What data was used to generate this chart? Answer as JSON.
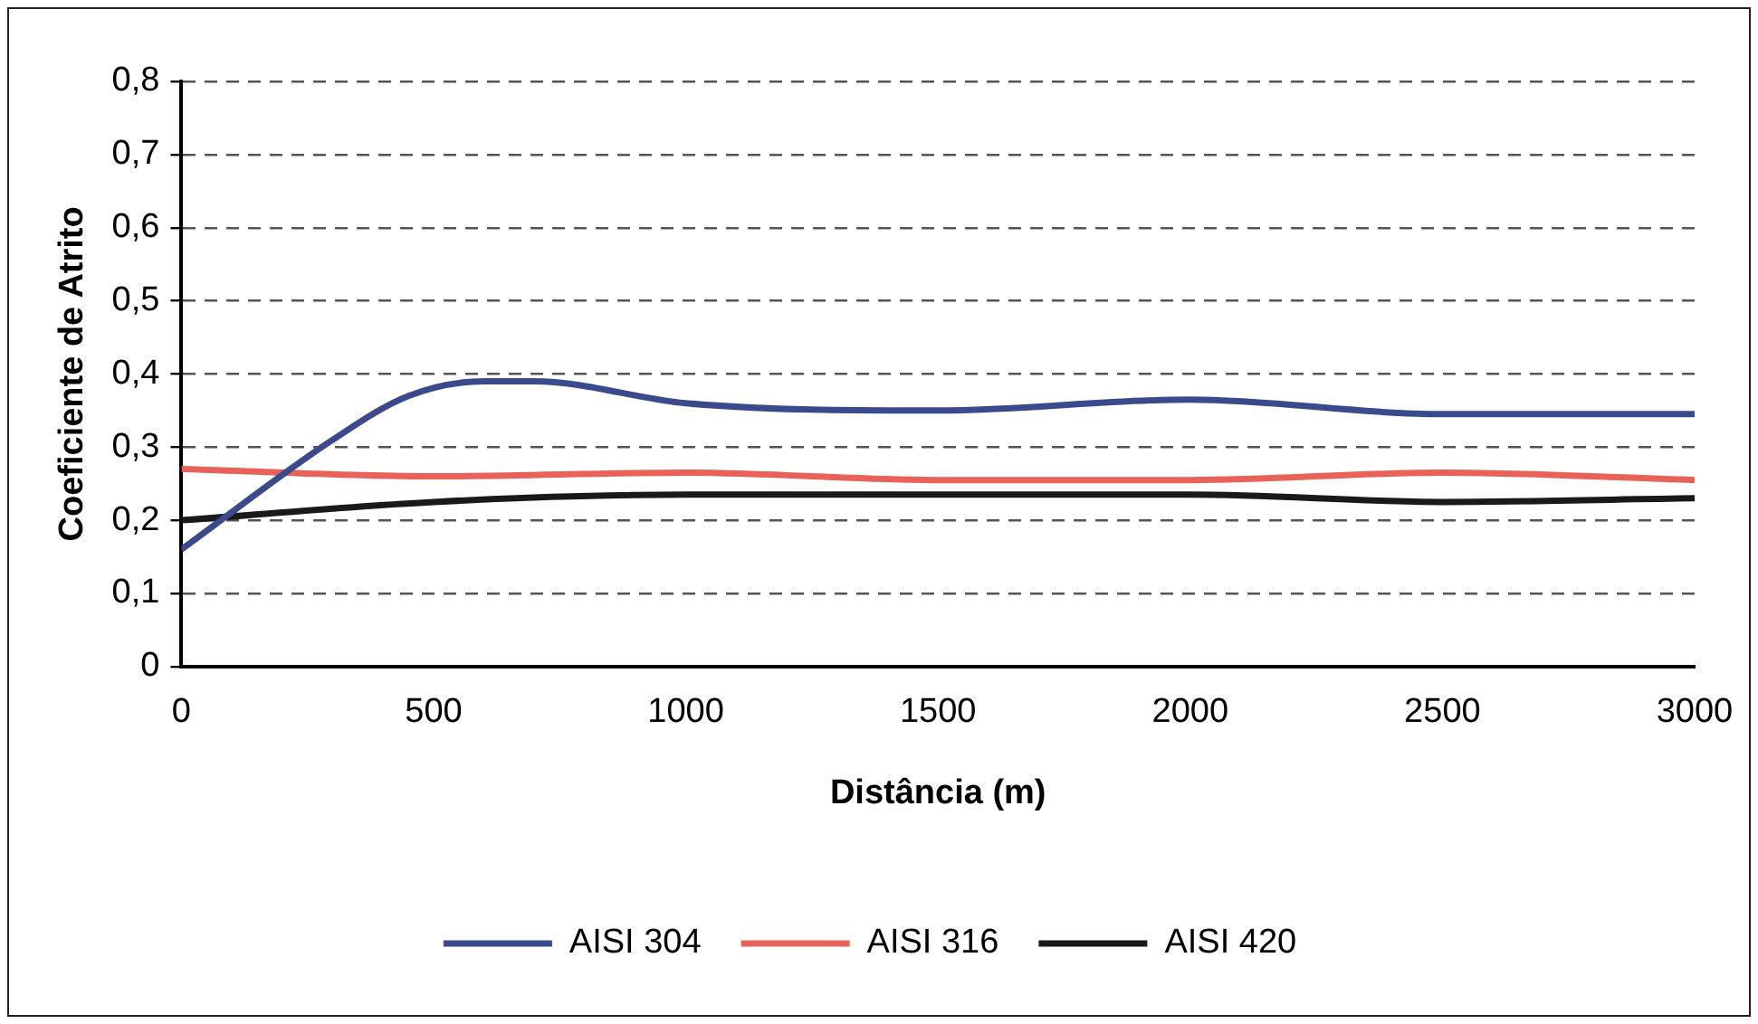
{
  "chart_data": {
    "type": "line",
    "xlabel": "Distância (m)",
    "ylabel": "Coeficiente de Atrito",
    "xlim": [
      0,
      3000
    ],
    "xticks": [
      0,
      500,
      1000,
      1500,
      2000,
      2500,
      3000
    ],
    "ylim": [
      0,
      0.8
    ],
    "yticks": [
      {
        "value": 0,
        "label": "0"
      },
      {
        "value": 0.1,
        "label": "0,1"
      },
      {
        "value": 0.2,
        "label": "0,2"
      },
      {
        "value": 0.3,
        "label": "0,3"
      },
      {
        "value": 0.4,
        "label": "0,4"
      },
      {
        "value": 0.5,
        "label": "0,5"
      },
      {
        "value": 0.6,
        "label": "0,6"
      },
      {
        "value": 0.7,
        "label": "0,7"
      },
      {
        "value": 0.8,
        "label": "0,8"
      }
    ],
    "grid": "y",
    "legend": "bottom",
    "marker": "none",
    "line_style": "solid",
    "series": [
      {
        "name": "AISI 304",
        "color": "#3b4a8c",
        "x": [
          0,
          300,
          450,
          600,
          700,
          1000,
          1500,
          2000,
          2500,
          3000
        ],
        "values": [
          0.16,
          0.31,
          0.37,
          0.39,
          0.39,
          0.36,
          0.35,
          0.365,
          0.345,
          0.345
        ]
      },
      {
        "name": "AISI 316",
        "color": "#e8625a",
        "x": [
          0,
          500,
          1000,
          1500,
          2000,
          2500,
          3000
        ],
        "values": [
          0.27,
          0.26,
          0.265,
          0.255,
          0.255,
          0.265,
          0.255
        ]
      },
      {
        "name": "AISI 420",
        "color": "#1a1a1a",
        "x": [
          0,
          500,
          1000,
          1500,
          2000,
          2500,
          3000
        ],
        "values": [
          0.2,
          0.225,
          0.235,
          0.235,
          0.235,
          0.225,
          0.23
        ]
      }
    ]
  }
}
